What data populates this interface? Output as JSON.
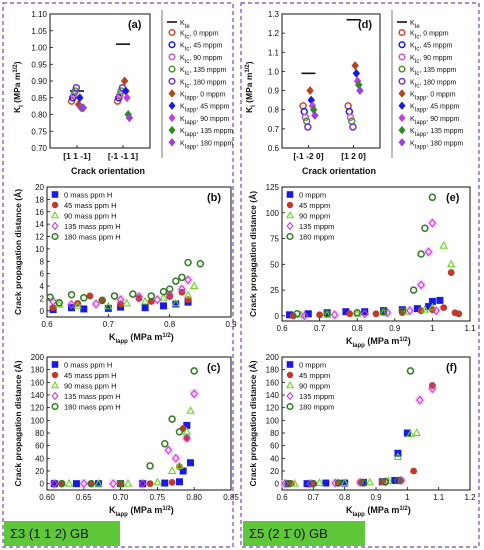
{
  "colors": {
    "border": "#8a3fb0",
    "gb_label_bg": "#5fc83a",
    "k0mppm_or_red": "#c0392b",
    "blue": "#1a1ae6",
    "red": "#c0392b",
    "green_tri": "#66d91a",
    "violet": "#c13fe0",
    "darkgreen": "#2e7d1e",
    "highlight": "#f6c6f0"
  },
  "gb_labels": {
    "left": "Σ3 (1 1 2) GB",
    "right": "Σ5 (2 1̄ 0) GB"
  },
  "chart_data": [
    {
      "id": "a",
      "type": "scatter",
      "panel_label": "(a)",
      "xlabel": "Crack orientation",
      "ylabel": "K_I (MPa m^1/2)",
      "ylim": [
        0.7,
        1.1
      ],
      "yticks": [
        0.7,
        0.75,
        0.8,
        0.85,
        0.9,
        0.95,
        1.0,
        1.05,
        1.1
      ],
      "categories": [
        "[1 1 -1]",
        "[-1 -1 1]"
      ],
      "legend_title": "K_Ie",
      "legend": [
        "K_Ic, 0 mppm",
        "K_Ic, 45 mppm",
        "K_Ic, 90 mppm",
        "K_Ic, 135 mppm",
        "K_Ic, 180 mppm",
        "K_Iapp, 0 mppm",
        "K_Iapp, 45 mppm",
        "K_Iapp, 90 mppm",
        "K_Iapp, 135 mppm",
        "K_Iapp, 180 mppm"
      ],
      "K_Ie": [
        0.87,
        1.01
      ],
      "series": [
        {
          "name": "K_Ic, 0 mppm",
          "values": [
            0.84,
            0.84
          ]
        },
        {
          "name": "K_Ic, 45 mppm",
          "values": [
            0.85,
            0.85
          ]
        },
        {
          "name": "K_Ic, 90 mppm",
          "values": [
            0.86,
            0.86
          ]
        },
        {
          "name": "K_Ic, 135 mppm",
          "values": [
            0.87,
            0.87
          ]
        },
        {
          "name": "K_Ic, 180 mppm",
          "values": [
            0.88,
            0.88
          ]
        },
        {
          "name": "K_Iapp, 0 mppm",
          "values": [
            0.83,
            0.9
          ]
        },
        {
          "name": "K_Iapp, 45 mppm",
          "values": [
            0.85,
            0.87
          ]
        },
        {
          "name": "K_Iapp, 90 mppm",
          "values": [
            0.82,
            0.85
          ]
        },
        {
          "name": "K_Iapp, 135 mppm",
          "values": [
            0.82,
            0.8
          ]
        },
        {
          "name": "K_Iapp, 180 mppm",
          "values": [
            0.82,
            0.79
          ]
        }
      ]
    },
    {
      "id": "d",
      "type": "scatter",
      "panel_label": "(d)",
      "xlabel": "Crack orientation",
      "ylabel": "K_I (MPa m^1/2)",
      "ylim": [
        0.6,
        1.3
      ],
      "yticks": [
        0.6,
        0.7,
        0.8,
        0.9,
        1.0,
        1.1,
        1.2,
        1.3
      ],
      "categories": [
        "[-1 -2 0]",
        "[1 2 0]"
      ],
      "legend_title": "K_Ie",
      "legend": [
        "K_Ic, 0 mppm",
        "K_Ic, 45 mppm",
        "K_Ic, 90 mppm",
        "K_Ic, 135 mppm",
        "K_Ic, 180 mppm",
        "K_Iapp, 0 mppm",
        "K_Iapp, 45 mppm",
        "K_Iapp, 90 mppm",
        "K_Iapp, 135 mppm",
        "K_Iapp, 180 mppm"
      ],
      "K_Ie": [
        0.99,
        1.27
      ],
      "series": [
        {
          "name": "K_Ic, 0 mppm",
          "values": [
            0.82,
            0.82
          ]
        },
        {
          "name": "K_Ic, 45 mppm",
          "values": [
            0.79,
            0.79
          ]
        },
        {
          "name": "K_Ic, 90 mppm",
          "values": [
            0.76,
            0.76
          ]
        },
        {
          "name": "K_Ic, 135 mppm",
          "values": [
            0.74,
            0.74
          ]
        },
        {
          "name": "K_Ic, 180 mppm",
          "values": [
            0.71,
            0.71
          ]
        },
        {
          "name": "K_Iapp, 0 mppm",
          "values": [
            0.9,
            1.03
          ]
        },
        {
          "name": "K_Iapp, 45 mppm",
          "values": [
            0.85,
            0.99
          ]
        },
        {
          "name": "K_Iapp, 90 mppm",
          "values": [
            0.82,
            0.95
          ]
        },
        {
          "name": "K_Iapp, 135 mppm",
          "values": [
            0.8,
            0.93
          ]
        },
        {
          "name": "K_Iapp, 180 mppm",
          "values": [
            0.77,
            0.9
          ]
        }
      ]
    },
    {
      "id": "b",
      "type": "scatter",
      "panel_label": "(b)",
      "xlabel": "K_Iapp (MPa m^1/2)",
      "ylabel": "Crack propagation distance (Å)",
      "xlim": [
        0.6,
        0.9
      ],
      "ylim": [
        -1,
        20
      ],
      "xticks": [
        0.6,
        0.7,
        0.8,
        0.9
      ],
      "yticks": [
        0,
        2,
        4,
        6,
        8,
        10,
        12,
        14,
        16,
        18,
        20
      ],
      "legend": [
        "0 mass ppm H",
        "45 mass ppm H",
        "90 mass ppm H",
        "135 mass ppm H",
        "180 mass ppm H"
      ],
      "series": [
        {
          "name": "0 mass ppm H",
          "x": [
            0.61,
            0.64,
            0.66,
            0.7,
            0.72,
            0.76,
            0.79,
            0.81,
            0.83
          ],
          "y": [
            0.2,
            0.5,
            0.3,
            0.4,
            0.6,
            0.5,
            0.8,
            1.1,
            1.4
          ]
        },
        {
          "name": "45 mass ppm H",
          "x": [
            0.61,
            0.65,
            0.67,
            0.69,
            0.72,
            0.75,
            0.77,
            0.8,
            0.82,
            0.83
          ],
          "y": [
            0.5,
            1.2,
            2.4,
            1.6,
            1.1,
            2.0,
            1.5,
            2.3,
            3.0,
            1.8
          ]
        },
        {
          "name": "90 mass ppm H",
          "x": [
            0.62,
            0.65,
            0.7,
            0.73,
            0.76,
            0.79,
            0.81,
            0.83,
            0.84
          ],
          "y": [
            1.0,
            0.8,
            0.7,
            1.2,
            1.5,
            2.1,
            1.2,
            2.5,
            4.0
          ]
        },
        {
          "name": "135 mass ppm H",
          "x": [
            0.61,
            0.64,
            0.68,
            0.72,
            0.75,
            0.78,
            0.8,
            0.82,
            0.83
          ],
          "y": [
            1.5,
            1.0,
            1.1,
            1.8,
            2.3,
            1.8,
            2.6,
            3.5,
            5.0
          ]
        },
        {
          "name": "180 mass ppm H",
          "x": [
            0.605,
            0.62,
            0.64,
            0.66,
            0.69,
            0.71,
            0.74,
            0.77,
            0.79,
            0.8,
            0.81,
            0.82,
            0.83,
            0.85
          ],
          "y": [
            2.2,
            1.3,
            2.6,
            2.1,
            1.7,
            2.4,
            2.7,
            2.4,
            3.1,
            3.5,
            4.8,
            5.4,
            7.8,
            7.6
          ]
        }
      ]
    },
    {
      "id": "e",
      "type": "scatter",
      "panel_label": "(e)",
      "xlabel": "K_Iapp (MPa m^1/2)",
      "ylabel": "Crack propagation distance (Å)",
      "xlim": [
        0.6,
        1.1
      ],
      "ylim": [
        -5,
        125
      ],
      "xticks": [
        0.6,
        0.7,
        0.8,
        0.9,
        1.0,
        1.1
      ],
      "yticks": [
        0,
        25,
        50,
        75,
        100,
        125
      ],
      "legend": [
        "0 mppm",
        "45 mppm",
        "90 mppm",
        "135 mppm",
        "180 mppm"
      ],
      "series": [
        {
          "name": "0 mppm",
          "x": [
            0.62,
            0.67,
            0.72,
            0.77,
            0.82,
            0.87,
            0.92,
            0.96,
            0.99,
            1.0,
            1.02
          ],
          "y": [
            1,
            2,
            3,
            4,
            4,
            5,
            6,
            7,
            9,
            14,
            15
          ]
        },
        {
          "name": "45 mppm",
          "x": [
            0.63,
            0.7,
            0.78,
            0.85,
            0.92,
            0.97,
            1.0,
            1.03,
            1.05,
            1.06,
            1.07
          ],
          "y": [
            0,
            1,
            2,
            2,
            3,
            5,
            6,
            8,
            42,
            3,
            2
          ]
        },
        {
          "name": "90 mppm",
          "x": [
            0.65,
            0.72,
            0.8,
            0.87,
            0.93,
            0.98,
            1.0,
            1.03,
            1.05
          ],
          "y": [
            1,
            1,
            2,
            3,
            4,
            6,
            8,
            68,
            50
          ]
        },
        {
          "name": "135 mppm",
          "x": [
            0.66,
            0.74,
            0.82,
            0.88,
            0.94,
            0.97,
            0.99,
            1.0,
            1.01
          ],
          "y": [
            0,
            1,
            2,
            3,
            5,
            30,
            62,
            90,
            5
          ]
        },
        {
          "name": "180 mppm",
          "x": [
            0.64,
            0.72,
            0.8,
            0.87,
            0.92,
            0.95,
            0.97,
            0.98,
            1.0
          ],
          "y": [
            2,
            2,
            3,
            4,
            5,
            25,
            60,
            85,
            115
          ]
        }
      ]
    },
    {
      "id": "c",
      "type": "scatter",
      "panel_label": "(c)",
      "xlabel": "K_Iapp (MPa m^1/2)",
      "ylabel": "Crack propagation distance (Å)",
      "xlim": [
        0.6,
        0.85
      ],
      "ylim": [
        -10,
        200
      ],
      "xticks": [
        0.6,
        0.65,
        0.7,
        0.75,
        0.8,
        0.85
      ],
      "yticks": [
        0,
        20,
        40,
        60,
        80,
        100,
        120,
        140,
        160,
        180,
        200
      ],
      "legend": [
        "0 mass ppm H",
        "45 mass ppm H",
        "90 mass ppm H",
        "135 mass ppm H",
        "180 mass ppm H"
      ],
      "series": [
        {
          "name": "0 mass ppm H",
          "x": [
            0.61,
            0.64,
            0.67,
            0.7,
            0.73,
            0.76,
            0.78,
            0.785,
            0.79,
            0.795
          ],
          "y": [
            0,
            0,
            0,
            0,
            0,
            1,
            3,
            20,
            92,
            33
          ]
        },
        {
          "name": "45 mass ppm H",
          "x": [
            0.62,
            0.66,
            0.7,
            0.74,
            0.77,
            0.78,
            0.785,
            0.79
          ],
          "y": [
            0,
            0,
            0,
            0,
            2,
            27,
            87,
            72
          ]
        },
        {
          "name": "90 mass ppm H",
          "x": [
            0.63,
            0.67,
            0.71,
            0.75,
            0.77,
            0.78,
            0.79,
            0.795
          ],
          "y": [
            0,
            0,
            0,
            2,
            20,
            28,
            82,
            115
          ]
        },
        {
          "name": "135 mass ppm H",
          "x": [
            0.61,
            0.65,
            0.69,
            0.73,
            0.765,
            0.775,
            0.79,
            0.8
          ],
          "y": [
            0,
            0,
            0,
            0,
            53,
            40,
            72,
            142
          ]
        },
        {
          "name": "180 mass ppm H",
          "x": [
            0.62,
            0.66,
            0.7,
            0.74,
            0.76,
            0.77,
            0.78,
            0.8
          ],
          "y": [
            0,
            0,
            0,
            28,
            63,
            102,
            82,
            178
          ]
        }
      ]
    },
    {
      "id": "f",
      "type": "scatter",
      "panel_label": "(f)",
      "xlabel": "K_Iapp (MPa m^1/2)",
      "ylabel": "Crack propagation distance (Å)",
      "xlim": [
        0.6,
        1.2
      ],
      "ylim": [
        -10,
        200
      ],
      "xticks": [
        0.6,
        0.7,
        0.8,
        0.9,
        1.0,
        1.1,
        1.2
      ],
      "yticks": [
        0,
        20,
        40,
        60,
        80,
        100,
        120,
        140,
        160,
        180,
        200
      ],
      "legend": [
        "0 mppm",
        "45 mppm",
        "90 mppm",
        "135 mppm",
        "180 mppm"
      ],
      "series": [
        {
          "name": "0 mppm",
          "x": [
            0.62,
            0.68,
            0.74,
            0.8,
            0.86,
            0.92,
            0.96,
            0.97,
            1.0
          ],
          "y": [
            0,
            0,
            1,
            1,
            2,
            3,
            5,
            48,
            80
          ]
        },
        {
          "name": "45 mppm",
          "x": [
            0.63,
            0.7,
            0.78,
            0.85,
            0.92,
            0.98,
            1.02,
            1.08
          ],
          "y": [
            0,
            0,
            1,
            2,
            3,
            5,
            20,
            155
          ]
        },
        {
          "name": "90 mppm",
          "x": [
            0.64,
            0.72,
            0.8,
            0.88,
            0.94,
            0.97,
            1.01,
            1.03
          ],
          "y": [
            0,
            1,
            1,
            2,
            4,
            42,
            78,
            80
          ]
        },
        {
          "name": "135 mppm",
          "x": [
            0.61,
            0.69,
            0.77,
            0.85,
            0.93,
            0.98,
            1.04,
            1.08
          ],
          "y": [
            0,
            0,
            1,
            2,
            3,
            5,
            132,
            150
          ]
        },
        {
          "name": "180 mppm",
          "x": [
            0.62,
            0.7,
            0.78,
            0.86,
            0.93,
            0.97,
            1.01
          ],
          "y": [
            0,
            0,
            1,
            1,
            3,
            5,
            178
          ]
        }
      ]
    }
  ]
}
